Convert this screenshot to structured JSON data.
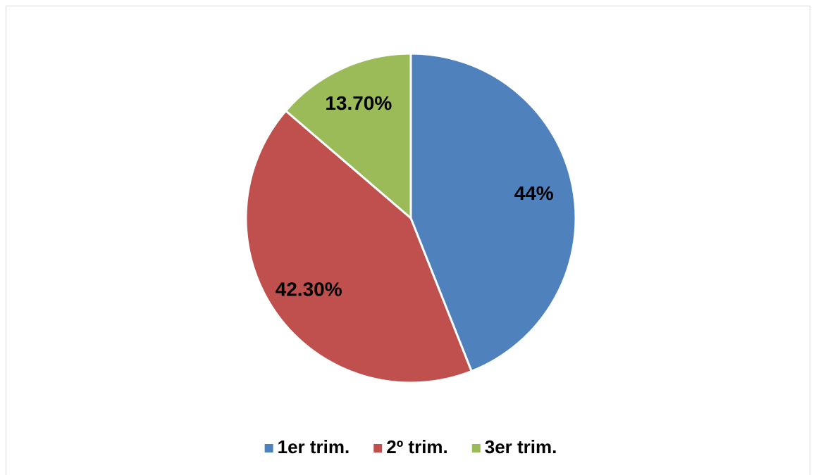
{
  "chart_data": {
    "type": "pie",
    "categories": [
      "1er trim.",
      "2º trim.",
      "3er trim."
    ],
    "values": [
      44,
      42.3,
      13.7
    ],
    "value_labels": [
      "44%",
      "42.30%",
      "13.70%"
    ],
    "colors": [
      "#4f81bd",
      "#c0504d",
      "#9bbb59"
    ],
    "legend": "bottom"
  }
}
